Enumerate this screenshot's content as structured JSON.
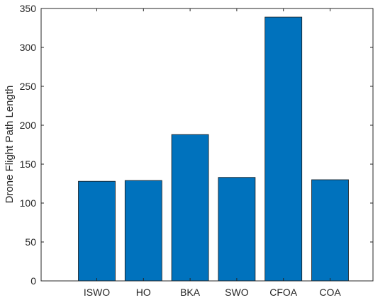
{
  "chart_data": {
    "type": "bar",
    "title": "",
    "xlabel": "",
    "ylabel": "Drone Flight Path Length",
    "categories": [
      "ISWO",
      "HO",
      "BKA",
      "SWO",
      "CFOA",
      "COA"
    ],
    "values": [
      128,
      129,
      188,
      133,
      339,
      130
    ],
    "ylim": [
      0,
      350
    ],
    "yticks": [
      0,
      50,
      100,
      150,
      200,
      250,
      300,
      350
    ],
    "grid": false,
    "legend": "none",
    "bar_color": "#0072BD",
    "bar_edge_color": "#1a1a1a",
    "axis_color": "#262626"
  }
}
